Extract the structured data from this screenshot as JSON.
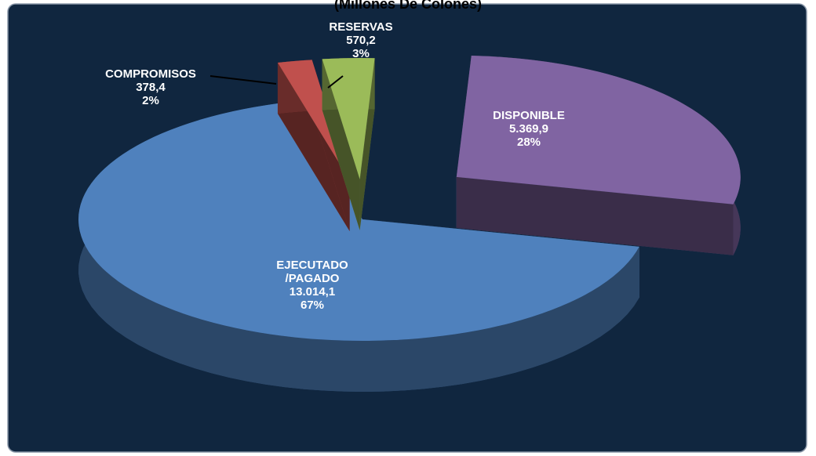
{
  "chart_data": {
    "type": "pie",
    "title": "(Millones De Colones)",
    "categories": [
      "EJECUTADO\n/PAGADO",
      "COMPROMISOS",
      "RESERVAS",
      "DISPONIBLE"
    ],
    "values": [
      13014.1,
      378.4,
      570.2,
      5369.9
    ],
    "value_labels": [
      "13.014,1",
      "378,4",
      "570,2",
      "5.369,9"
    ],
    "percent_labels": [
      "67%",
      "2%",
      "3%",
      "28%"
    ],
    "colors": [
      "#4f81bd",
      "#c0504d",
      "#9bbb59",
      "#8064a2"
    ]
  }
}
